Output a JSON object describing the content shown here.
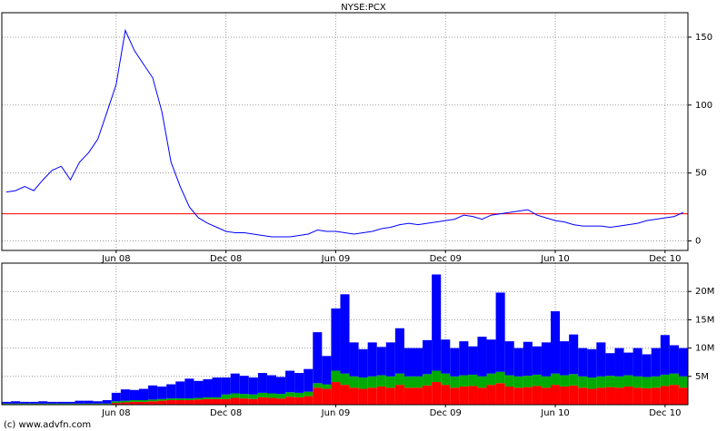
{
  "chart_data": [
    {
      "type": "line",
      "title": "NYSE:PCX",
      "categories": [
        null,
        null,
        null,
        null,
        null,
        null,
        null,
        null,
        null,
        null,
        null,
        null,
        "Jun 08",
        null,
        null,
        null,
        null,
        null,
        null,
        null,
        null,
        null,
        null,
        null,
        "Dec 08",
        null,
        null,
        null,
        null,
        null,
        null,
        null,
        null,
        null,
        null,
        null,
        "Jun 09",
        null,
        null,
        null,
        null,
        null,
        null,
        null,
        null,
        null,
        null,
        null,
        "Dec 09",
        null,
        null,
        null,
        null,
        null,
        null,
        null,
        null,
        null,
        null,
        null,
        "Jun 10",
        null,
        null,
        null,
        null,
        null,
        null,
        null,
        null,
        null,
        null,
        null,
        "Dec 10",
        null,
        null
      ],
      "values": [
        36,
        37,
        40,
        37,
        45,
        52,
        55,
        45,
        58,
        65,
        75,
        95,
        115,
        155,
        140,
        130,
        120,
        95,
        58,
        40,
        25,
        17,
        13,
        10,
        7,
        6,
        6,
        5,
        4,
        3,
        3,
        3,
        4,
        5,
        8,
        7,
        7,
        6,
        5,
        6,
        7,
        9,
        10,
        12,
        13,
        12,
        13,
        14,
        15,
        16,
        19,
        18,
        16,
        19,
        20,
        21,
        22,
        23,
        19,
        17,
        15,
        14,
        12,
        11,
        11,
        11,
        10,
        11,
        12,
        13,
        15,
        16,
        17,
        18,
        21
      ],
      "color": "#0000ff",
      "reference_line": {
        "value": 20,
        "color": "#ff0000"
      },
      "ylim": [
        -7,
        168
      ],
      "yticks": [
        0,
        50,
        100,
        150
      ],
      "grid": true
    },
    {
      "type": "bar",
      "stacked": true,
      "categories": [
        null,
        null,
        null,
        null,
        null,
        null,
        null,
        null,
        null,
        null,
        null,
        null,
        "Jun 08",
        null,
        null,
        null,
        null,
        null,
        null,
        null,
        null,
        null,
        null,
        null,
        "Dec 08",
        null,
        null,
        null,
        null,
        null,
        null,
        null,
        null,
        null,
        null,
        null,
        "Jun 09",
        null,
        null,
        null,
        null,
        null,
        null,
        null,
        null,
        null,
        null,
        null,
        "Dec 09",
        null,
        null,
        null,
        null,
        null,
        null,
        null,
        null,
        null,
        null,
        null,
        "Jun 10",
        null,
        null,
        null,
        null,
        null,
        null,
        null,
        null,
        null,
        null,
        null,
        "Dec 10",
        null,
        null
      ],
      "series": [
        {
          "color": "#ff0000",
          "values": [
            0.1,
            0.1,
            0.1,
            0.1,
            0.1,
            0.1,
            0.1,
            0.1,
            0.1,
            0.1,
            0.1,
            0.1,
            0.3,
            0.4,
            0.5,
            0.5,
            0.6,
            0.7,
            0.8,
            0.8,
            0.8,
            0.9,
            1,
            1,
            1,
            1.2,
            1.1,
            1,
            1.3,
            1.2,
            1.1,
            1.4,
            1.3,
            1.5,
            3,
            2.8,
            4,
            3.5,
            3,
            2.8,
            3,
            3.2,
            3,
            3.5,
            3,
            3,
            3.4,
            4,
            3.5,
            3,
            3.2,
            3.3,
            3,
            3.5,
            3.8,
            3.2,
            3,
            3.1,
            3.3,
            3,
            3.5,
            3.2,
            3.4,
            3,
            2.8,
            3,
            3.1,
            3,
            3.2,
            3,
            2.9,
            3,
            3.3,
            3.5,
            3
          ]
        },
        {
          "color": "#00aa00",
          "values": [
            0.1,
            0.1,
            0.1,
            0.1,
            0.1,
            0.1,
            0.1,
            0.1,
            0.1,
            0.1,
            0.1,
            0.1,
            0.3,
            0.3,
            0.3,
            0.3,
            0.3,
            0.3,
            0.3,
            0.3,
            0.3,
            0.3,
            0.3,
            0.3,
            0.8,
            0.8,
            0.8,
            0.8,
            0.8,
            0.8,
            0.8,
            0.8,
            0.8,
            0.8,
            0.8,
            0.8,
            2,
            2,
            2,
            2,
            2,
            2,
            2,
            2,
            2,
            2,
            2,
            2,
            2,
            2,
            2,
            2,
            2,
            2,
            2,
            2,
            2,
            2,
            2,
            2,
            2,
            2,
            2,
            2,
            2,
            2,
            2,
            2,
            2,
            2,
            2,
            2,
            2,
            2,
            2
          ]
        },
        {
          "color": "#0000ff",
          "values": [
            0.3,
            0.4,
            0.3,
            0.3,
            0.4,
            0.3,
            0.3,
            0.3,
            0.5,
            0.5,
            0.4,
            0.6,
            1.5,
            2,
            1.8,
            2,
            2.5,
            2.2,
            2.5,
            3,
            3.5,
            3,
            3.2,
            3.5,
            3,
            3.5,
            3.2,
            3,
            3.5,
            3.2,
            3,
            3.8,
            3.5,
            4,
            9,
            5,
            11,
            14,
            6,
            5,
            6,
            5,
            6,
            8,
            5,
            5,
            6,
            17,
            6,
            5,
            6,
            5,
            7,
            6,
            14,
            6,
            5,
            6,
            5,
            6,
            11,
            6,
            7,
            5,
            5,
            6,
            4,
            5,
            4,
            5,
            4,
            5,
            7,
            5,
            5
          ]
        }
      ],
      "ylim": [
        0,
        25
      ],
      "yticks": [
        {
          "value": 5,
          "label": "5M"
        },
        {
          "value": 10,
          "label": "10M"
        },
        {
          "value": 15,
          "label": "15M"
        },
        {
          "value": 20,
          "label": "20M"
        }
      ],
      "grid": true
    }
  ],
  "footer": "(c) www.advfn.com"
}
